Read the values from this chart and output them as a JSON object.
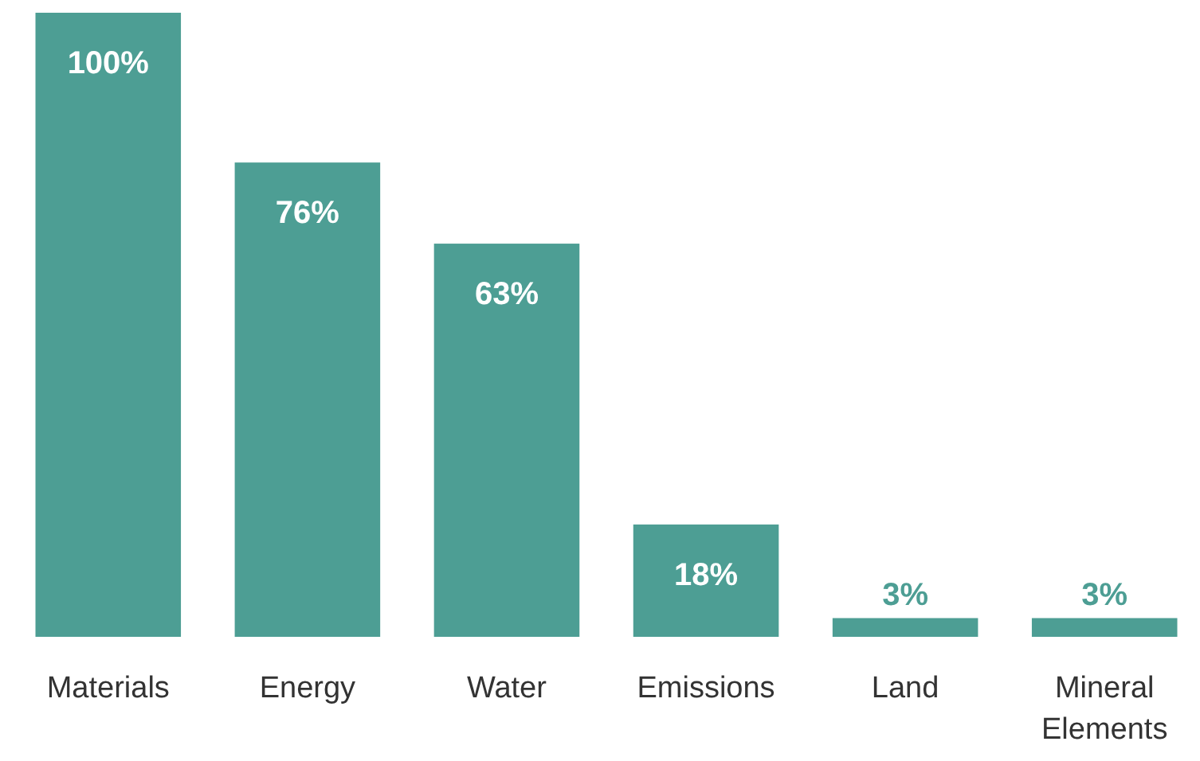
{
  "chart_data": {
    "type": "bar",
    "categories": [
      "Materials",
      "Energy",
      "Water",
      "Emissions",
      "Land",
      "Mineral Elements"
    ],
    "values": [
      100,
      76,
      63,
      18,
      3,
      3
    ],
    "value_labels": [
      "100%",
      "76%",
      "63%",
      "18%",
      "3%",
      "3%"
    ],
    "color": "#4d9e94",
    "ylim": [
      0,
      100
    ]
  }
}
